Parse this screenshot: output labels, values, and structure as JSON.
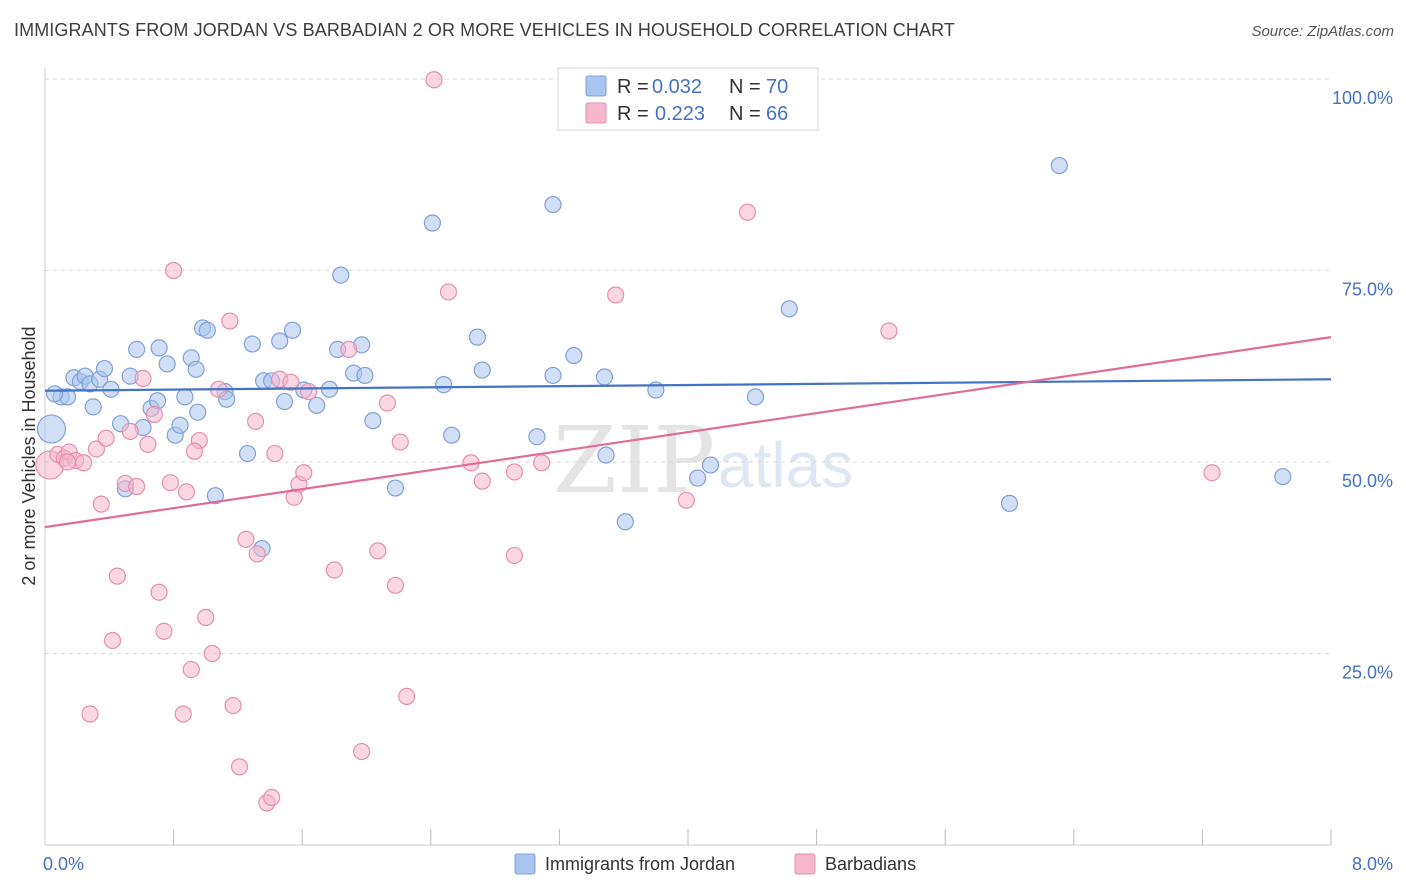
{
  "header": {
    "title": "IMMIGRANTS FROM JORDAN VS BARBADIAN 2 OR MORE VEHICLES IN HOUSEHOLD CORRELATION CHART",
    "source": "Source: ZipAtlas.com"
  },
  "watermark": {
    "zip": "ZIP",
    "atlas": "atlas"
  },
  "stats_legend": {
    "rows": [
      {
        "r_label": "R =",
        "r_value": "0.032",
        "n_label": "N =",
        "n_value": "70"
      },
      {
        "r_label": "R =",
        "r_value": "0.223",
        "n_label": "N =",
        "n_value": "66"
      }
    ]
  },
  "chart_data": {
    "type": "scatter",
    "title": "IMMIGRANTS FROM JORDAN VS BARBADIAN 2 OR MORE VEHICLES IN HOUSEHOLD CORRELATION CHART",
    "xlabel": "",
    "ylabel": "2 or more Vehicles in Household",
    "xlim": [
      0,
      8
    ],
    "ylim": [
      0,
      100
    ],
    "x_tick_labels": [
      "0.0%",
      "8.0%"
    ],
    "y_ticks": [
      25,
      50,
      75,
      100
    ],
    "y_tick_labels": [
      "25.0%",
      "50.0%",
      "75.0%",
      "100.0%"
    ],
    "grid": true,
    "legend_position": "bottom-center",
    "colors": {
      "jordan": "#4472c4",
      "jordan_fill": "#a9c4ee",
      "barbadian": "#e06c9a",
      "barbadian_fill": "#f6b6cb"
    },
    "series": [
      {
        "name": "Immigrants from Jordan",
        "r": 0.032,
        "n": 70,
        "trend": {
          "x": [
            0,
            8
          ],
          "y": [
            59.3,
            60.8
          ]
        },
        "points": [
          {
            "x": 0.04,
            "y": 54.3,
            "big": true
          },
          {
            "x": 0.1,
            "y": 58.5
          },
          {
            "x": 0.14,
            "y": 58.5
          },
          {
            "x": 0.18,
            "y": 61.0
          },
          {
            "x": 0.22,
            "y": 60.5
          },
          {
            "x": 0.25,
            "y": 61.2
          },
          {
            "x": 0.28,
            "y": 60.2
          },
          {
            "x": 0.3,
            "y": 57.2
          },
          {
            "x": 0.34,
            "y": 60.8
          },
          {
            "x": 0.37,
            "y": 62.2
          },
          {
            "x": 0.41,
            "y": 59.5
          },
          {
            "x": 0.47,
            "y": 55.0
          },
          {
            "x": 0.5,
            "y": 46.5
          },
          {
            "x": 0.53,
            "y": 61.2
          },
          {
            "x": 0.57,
            "y": 64.7
          },
          {
            "x": 0.61,
            "y": 54.5
          },
          {
            "x": 0.66,
            "y": 57.0
          },
          {
            "x": 0.71,
            "y": 64.9
          },
          {
            "x": 0.76,
            "y": 62.8
          },
          {
            "x": 0.81,
            "y": 53.5
          },
          {
            "x": 0.84,
            "y": 54.8
          },
          {
            "x": 0.87,
            "y": 58.5
          },
          {
            "x": 0.91,
            "y": 63.6
          },
          {
            "x": 0.94,
            "y": 62.1
          },
          {
            "x": 0.98,
            "y": 67.5
          },
          {
            "x": 1.01,
            "y": 67.2
          },
          {
            "x": 1.06,
            "y": 45.6
          },
          {
            "x": 1.12,
            "y": 59.2
          },
          {
            "x": 1.13,
            "y": 58.2
          },
          {
            "x": 1.29,
            "y": 65.4
          },
          {
            "x": 1.26,
            "y": 51.1
          },
          {
            "x": 1.36,
            "y": 60.6
          },
          {
            "x": 1.41,
            "y": 60.6
          },
          {
            "x": 1.46,
            "y": 65.8
          },
          {
            "x": 1.49,
            "y": 57.9
          },
          {
            "x": 1.54,
            "y": 67.2
          },
          {
            "x": 1.61,
            "y": 59.4
          },
          {
            "x": 1.35,
            "y": 38.7
          },
          {
            "x": 1.69,
            "y": 57.4
          },
          {
            "x": 1.77,
            "y": 59.5
          },
          {
            "x": 1.82,
            "y": 64.7
          },
          {
            "x": 1.84,
            "y": 74.4
          },
          {
            "x": 1.92,
            "y": 61.6
          },
          {
            "x": 1.97,
            "y": 65.3
          },
          {
            "x": 1.99,
            "y": 61.3
          },
          {
            "x": 2.04,
            "y": 55.4
          },
          {
            "x": 2.18,
            "y": 46.6
          },
          {
            "x": 2.41,
            "y": 81.2
          },
          {
            "x": 2.48,
            "y": 60.1
          },
          {
            "x": 2.53,
            "y": 53.5
          },
          {
            "x": 2.69,
            "y": 66.3
          },
          {
            "x": 2.72,
            "y": 62.0
          },
          {
            "x": 3.06,
            "y": 53.3
          },
          {
            "x": 3.16,
            "y": 83.6
          },
          {
            "x": 3.16,
            "y": 61.3
          },
          {
            "x": 3.29,
            "y": 63.9
          },
          {
            "x": 3.48,
            "y": 61.1
          },
          {
            "x": 3.49,
            "y": 50.9
          },
          {
            "x": 3.61,
            "y": 42.2
          },
          {
            "x": 3.8,
            "y": 59.4
          },
          {
            "x": 4.06,
            "y": 47.9
          },
          {
            "x": 4.14,
            "y": 49.6
          },
          {
            "x": 4.42,
            "y": 58.5
          },
          {
            "x": 4.63,
            "y": 70.0
          },
          {
            "x": 6.31,
            "y": 88.7
          },
          {
            "x": 6.0,
            "y": 44.6
          },
          {
            "x": 7.7,
            "y": 48.1
          },
          {
            "x": 0.06,
            "y": 58.9
          },
          {
            "x": 0.7,
            "y": 58.0
          },
          {
            "x": 0.95,
            "y": 56.5
          }
        ]
      },
      {
        "name": "Barbadians",
        "r": 0.223,
        "n": 66,
        "trend": {
          "x": [
            0,
            8
          ],
          "y": [
            41.5,
            66.3
          ]
        },
        "points": [
          {
            "x": 0.03,
            "y": 49.6,
            "big": true
          },
          {
            "x": 0.08,
            "y": 51.0
          },
          {
            "x": 0.12,
            "y": 50.5
          },
          {
            "x": 0.15,
            "y": 51.3
          },
          {
            "x": 0.19,
            "y": 50.2
          },
          {
            "x": 0.24,
            "y": 49.9
          },
          {
            "x": 0.28,
            "y": 17.1
          },
          {
            "x": 0.32,
            "y": 51.7
          },
          {
            "x": 0.35,
            "y": 44.5
          },
          {
            "x": 0.38,
            "y": 53.1
          },
          {
            "x": 0.42,
            "y": 26.7
          },
          {
            "x": 0.45,
            "y": 35.1
          },
          {
            "x": 0.5,
            "y": 47.2
          },
          {
            "x": 0.53,
            "y": 54.0
          },
          {
            "x": 0.57,
            "y": 46.8
          },
          {
            "x": 0.61,
            "y": 60.9
          },
          {
            "x": 0.64,
            "y": 52.3
          },
          {
            "x": 0.68,
            "y": 56.2
          },
          {
            "x": 0.71,
            "y": 33.0
          },
          {
            "x": 0.74,
            "y": 27.9
          },
          {
            "x": 0.78,
            "y": 47.3
          },
          {
            "x": 0.8,
            "y": 75.0
          },
          {
            "x": 0.86,
            "y": 17.1
          },
          {
            "x": 0.88,
            "y": 46.1
          },
          {
            "x": 0.91,
            "y": 22.9
          },
          {
            "x": 0.96,
            "y": 52.8
          },
          {
            "x": 1.0,
            "y": 29.7
          },
          {
            "x": 1.04,
            "y": 25.0
          },
          {
            "x": 1.08,
            "y": 59.5
          },
          {
            "x": 1.15,
            "y": 68.4
          },
          {
            "x": 1.17,
            "y": 18.2
          },
          {
            "x": 1.21,
            "y": 10.2
          },
          {
            "x": 1.25,
            "y": 39.9
          },
          {
            "x": 1.31,
            "y": 55.3
          },
          {
            "x": 1.32,
            "y": 38.0
          },
          {
            "x": 1.38,
            "y": 5.5
          },
          {
            "x": 1.41,
            "y": 6.2
          },
          {
            "x": 1.43,
            "y": 51.1
          },
          {
            "x": 1.46,
            "y": 60.8
          },
          {
            "x": 1.53,
            "y": 60.4
          },
          {
            "x": 1.55,
            "y": 45.4
          },
          {
            "x": 1.58,
            "y": 47.1
          },
          {
            "x": 1.61,
            "y": 48.6
          },
          {
            "x": 1.64,
            "y": 59.2
          },
          {
            "x": 1.89,
            "y": 64.7
          },
          {
            "x": 1.8,
            "y": 35.9
          },
          {
            "x": 1.97,
            "y": 12.2
          },
          {
            "x": 2.07,
            "y": 38.4
          },
          {
            "x": 2.13,
            "y": 57.7
          },
          {
            "x": 2.18,
            "y": 33.9
          },
          {
            "x": 2.21,
            "y": 52.6
          },
          {
            "x": 2.25,
            "y": 19.4
          },
          {
            "x": 2.42,
            "y": 99.9
          },
          {
            "x": 2.51,
            "y": 72.2
          },
          {
            "x": 2.65,
            "y": 49.9
          },
          {
            "x": 2.72,
            "y": 47.5
          },
          {
            "x": 2.92,
            "y": 48.7
          },
          {
            "x": 2.92,
            "y": 37.8
          },
          {
            "x": 3.09,
            "y": 49.9
          },
          {
            "x": 3.55,
            "y": 71.8
          },
          {
            "x": 3.99,
            "y": 45.0
          },
          {
            "x": 4.37,
            "y": 82.6
          },
          {
            "x": 5.25,
            "y": 67.1
          },
          {
            "x": 7.26,
            "y": 48.6
          },
          {
            "x": 0.93,
            "y": 51.4
          },
          {
            "x": 0.14,
            "y": 50.0
          }
        ]
      }
    ]
  },
  "bottom_legend": {
    "items": [
      {
        "label": "Immigrants from Jordan"
      },
      {
        "label": "Barbadians"
      }
    ]
  }
}
